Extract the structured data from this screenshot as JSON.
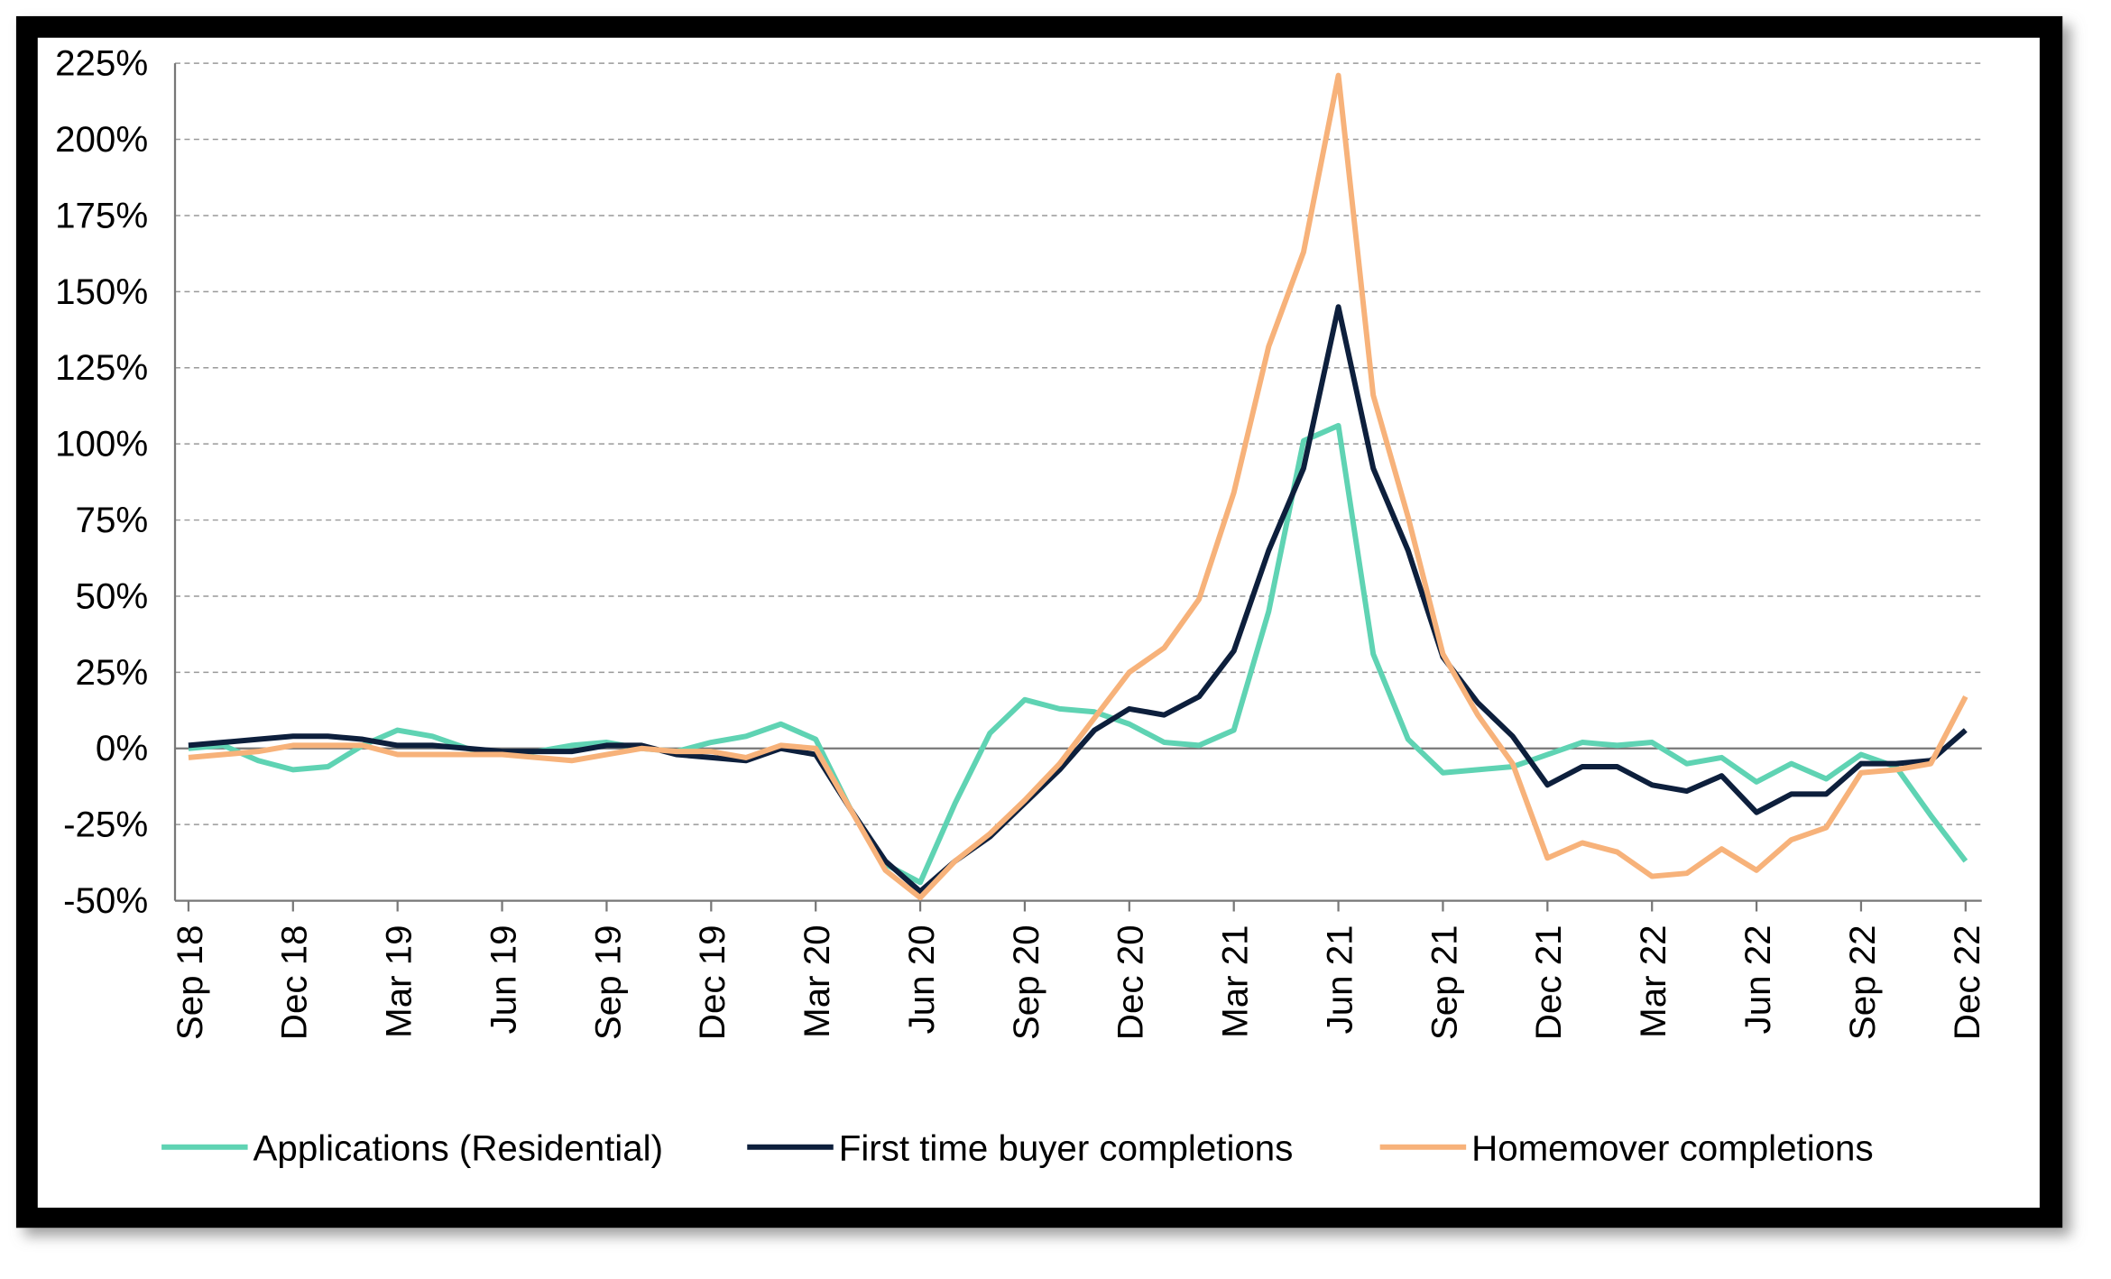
{
  "chart_data": {
    "type": "line",
    "categories": [
      "Sep 18",
      null,
      null,
      "Dec 18",
      null,
      null,
      "Mar 19",
      null,
      null,
      "Jun 19",
      null,
      null,
      "Sep 19",
      null,
      null,
      "Dec 19",
      null,
      null,
      "Mar 20",
      null,
      null,
      "Jun 20",
      null,
      null,
      "Sep 20",
      null,
      null,
      "Dec 20",
      null,
      null,
      "Mar 21",
      null,
      null,
      "Jun 21",
      null,
      null,
      "Sep 21",
      null,
      null,
      "Dec 21",
      null,
      null,
      "Mar 22",
      null,
      null,
      "Jun 22",
      null,
      null,
      "Sep 22",
      null,
      null,
      "Dec 22"
    ],
    "series": [
      {
        "name": "Applications (Residential)",
        "color": "#5fd3b3",
        "values": [
          0,
          1,
          -4,
          -7,
          -6,
          1,
          6,
          4,
          0,
          -2,
          -1,
          1,
          2,
          0,
          -1,
          2,
          4,
          8,
          3,
          -20,
          -38,
          -44,
          -18,
          5,
          16,
          13,
          12,
          8,
          2,
          1,
          6,
          45,
          101,
          106,
          31,
          3,
          -8,
          -7,
          -6,
          -2,
          2,
          1,
          2,
          -5,
          -3,
          -11,
          -5,
          -10,
          -2,
          -6,
          -22,
          -37
        ]
      },
      {
        "name": "First time buyer completions",
        "color": "#0d1f3c",
        "values": [
          1,
          2,
          3,
          4,
          4,
          3,
          1,
          1,
          0,
          -1,
          -1,
          -1,
          1,
          1,
          -2,
          -3,
          -4,
          0,
          -2,
          -20,
          -37,
          -47,
          -37,
          -29,
          -18,
          -7,
          6,
          13,
          11,
          17,
          32,
          65,
          92,
          145,
          92,
          65,
          30,
          15,
          4,
          -12,
          -6,
          -6,
          -12,
          -14,
          -9,
          -21,
          -15,
          -15,
          -5,
          -5,
          -4,
          6
        ]
      },
      {
        "name": "Homemover completions",
        "color": "#f7b27a",
        "values": [
          -3,
          -2,
          -1,
          1,
          1,
          1,
          -2,
          -2,
          -2,
          -2,
          -3,
          -4,
          -2,
          0,
          -1,
          -1,
          -3,
          1,
          0,
          -20,
          -40,
          -49,
          -37,
          -28,
          -17,
          -5,
          10,
          25,
          33,
          49,
          84,
          132,
          163,
          221,
          116,
          76,
          31,
          11,
          -5,
          -36,
          -31,
          -34,
          -42,
          -41,
          -33,
          -40,
          -30,
          -26,
          -8,
          -7,
          -5,
          17
        ]
      }
    ],
    "ylim": [
      -50,
      225
    ],
    "yticks": [
      {
        "value": -50,
        "label": "-50%"
      },
      {
        "value": -25,
        "label": "-25%"
      },
      {
        "value": 0,
        "label": "0%"
      },
      {
        "value": 25,
        "label": "25%"
      },
      {
        "value": 50,
        "label": "50%"
      },
      {
        "value": 75,
        "label": "75%"
      },
      {
        "value": 100,
        "label": "100%"
      },
      {
        "value": 125,
        "label": "125%"
      },
      {
        "value": 150,
        "label": "150%"
      },
      {
        "value": 175,
        "label": "175%"
      },
      {
        "value": 200,
        "label": "200%"
      },
      {
        "value": 225,
        "label": "225%"
      }
    ],
    "grid": true,
    "legend": "bottom"
  }
}
